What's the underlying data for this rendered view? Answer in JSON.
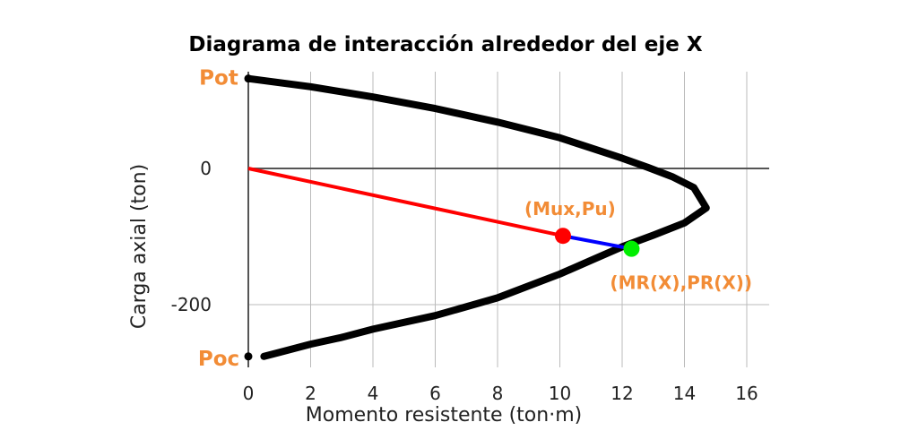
{
  "chart_data": {
    "type": "line",
    "title": "Diagrama de interacción alrededor del eje X",
    "xlabel": "Momento resistente (ton·m)",
    "ylabel": "Carga axial (ton)",
    "xlim": [
      0,
      16.5
    ],
    "ylim": [
      -290,
      135
    ],
    "xticks": [
      0,
      2,
      4,
      6,
      8,
      10,
      12,
      14,
      16
    ],
    "yticks": [
      0,
      -200
    ],
    "grid": true,
    "colors": {
      "curve": "#000000",
      "demand_line": "#ff0000",
      "demand_point": "#ff0000",
      "capacity_line": "#0000ff",
      "capacity_point": "#00ee00",
      "annotation": "#f28c36",
      "grid": "#bbbbbb",
      "zero_axis": "#555555"
    },
    "series": [
      {
        "points": [
          [
            0,
            132
          ],
          [
            2,
            120
          ],
          [
            4,
            105
          ],
          [
            6,
            88
          ],
          [
            8,
            68
          ],
          [
            10,
            45
          ],
          [
            11,
            30
          ],
          [
            12,
            15
          ],
          [
            12.8,
            2
          ],
          [
            13.6,
            -12
          ],
          [
            14.3,
            -28
          ],
          [
            14.7,
            -58
          ],
          [
            14,
            -80
          ],
          [
            13,
            -98
          ],
          [
            12,
            -115
          ],
          [
            11,
            -135
          ],
          [
            10,
            -155
          ],
          [
            8,
            -190
          ],
          [
            6,
            -216
          ],
          [
            4,
            -236
          ],
          [
            3,
            -248
          ],
          [
            2,
            -258
          ],
          [
            1,
            -270
          ],
          [
            0.5,
            -276
          ]
        ]
      },
      {
        "points": [
          [
            0,
            0
          ],
          [
            10.1,
            -99
          ]
        ]
      },
      {
        "points": [
          [
            10.1,
            -99
          ],
          [
            12.3,
            -118
          ]
        ]
      }
    ],
    "axis_end_points": [
      [
        0,
        132
      ],
      [
        0,
        -276
      ]
    ],
    "points": [
      {
        "label": "(Mux,Pu)",
        "x": 10.1,
        "y": -99
      },
      {
        "label": "(MR(X),PR(X))",
        "x": 12.3,
        "y": -118
      }
    ],
    "labels": {
      "pot": "Pot",
      "poc": "Poc"
    }
  }
}
